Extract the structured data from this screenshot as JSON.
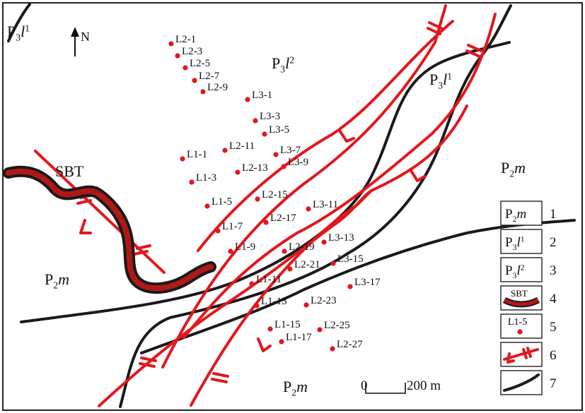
{
  "map": {
    "north_label": "N",
    "units": [
      {
        "id": "p3l1-top-left",
        "base": "P",
        "sub": "3",
        "italic": "l",
        "sup": "1"
      },
      {
        "id": "p3l2-top",
        "base": "P",
        "sub": "3",
        "italic": "l",
        "sup": "2"
      },
      {
        "id": "p3l1-right",
        "base": "P",
        "sub": "3",
        "italic": "l",
        "sup": "1"
      },
      {
        "id": "p2m-right",
        "base": "P",
        "sub": "2",
        "italic": "m",
        "sup": ""
      },
      {
        "id": "p2m-left",
        "base": "P",
        "sub": "2",
        "italic": "m",
        "sup": ""
      },
      {
        "id": "p2m-bottom",
        "base": "P",
        "sub": "2",
        "italic": "m",
        "sup": ""
      }
    ],
    "sbt_label": "SBT",
    "scale": {
      "zero": "0",
      "value": "200 m"
    },
    "point_color": "#e3171d",
    "fault_color": "#e3171d",
    "boundary_color": "#1a1a1a",
    "sample_points": [
      {
        "label": "L2-1"
      },
      {
        "label": "L2-3"
      },
      {
        "label": "L2-5"
      },
      {
        "label": "L2-7"
      },
      {
        "label": "L2-9"
      },
      {
        "label": "L2-11"
      },
      {
        "label": "L2-13"
      },
      {
        "label": "L2-15"
      },
      {
        "label": "L2-17"
      },
      {
        "label": "L2-19"
      },
      {
        "label": "L2-21"
      },
      {
        "label": "L2-23"
      },
      {
        "label": "L2-25"
      },
      {
        "label": "L2-27"
      },
      {
        "label": "L3-1"
      },
      {
        "label": "L3-3"
      },
      {
        "label": "L3-5"
      },
      {
        "label": "L3-7"
      },
      {
        "label": "L3-9"
      },
      {
        "label": "L3-11"
      },
      {
        "label": "L3-13"
      },
      {
        "label": "L3-15"
      },
      {
        "label": "L3-17"
      },
      {
        "label": "L1-1"
      },
      {
        "label": "L1-3"
      },
      {
        "label": "L1-5"
      },
      {
        "label": "L1-7"
      },
      {
        "label": "L1-9"
      },
      {
        "label": "L1-11"
      },
      {
        "label": "L1-13"
      },
      {
        "label": "L1-15"
      },
      {
        "label": "L1-17"
      }
    ],
    "legend": [
      {
        "num": "1",
        "kind": "unit",
        "base": "P",
        "sub": "2",
        "italic": "m",
        "sup": ""
      },
      {
        "num": "2",
        "kind": "unit",
        "base": "P",
        "sub": "3",
        "italic": "l",
        "sup": "1"
      },
      {
        "num": "3",
        "kind": "unit",
        "base": "P",
        "sub": "3",
        "italic": "l",
        "sup": "2"
      },
      {
        "num": "4",
        "kind": "sbt",
        "text": "SBT"
      },
      {
        "num": "5",
        "kind": "point",
        "text": "L1-5"
      },
      {
        "num": "6",
        "kind": "fault"
      },
      {
        "num": "7",
        "kind": "boundary"
      }
    ]
  }
}
